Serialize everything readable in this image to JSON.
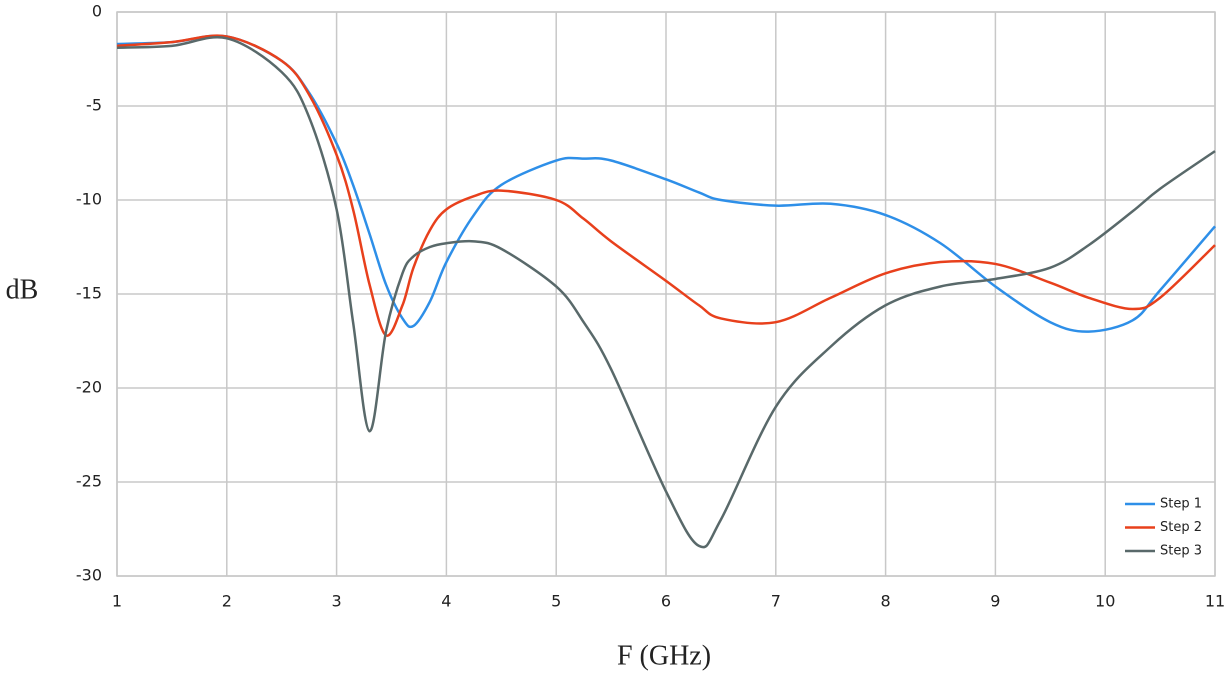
{
  "chart_data": {
    "type": "line",
    "x_label": "F (GHz)",
    "y_label": "dB",
    "x": [
      1,
      1.5,
      2,
      2.5,
      2.75,
      3,
      3.15,
      3.3,
      3.45,
      3.6,
      3.7,
      3.85,
      4,
      4.25,
      4.5,
      5,
      5.25,
      5.5,
      6,
      6.3,
      6.5,
      7,
      7.5,
      8,
      8.5,
      9,
      9.5,
      9.85,
      10.25,
      10.5,
      11
    ],
    "series": [
      {
        "name": "Step 1",
        "color": "#2e8fe8",
        "values": [
          -1.7,
          -1.6,
          -1.3,
          -2.6,
          -4.3,
          -7.0,
          -9.2,
          -11.8,
          -14.5,
          -16.3,
          -16.7,
          -15.4,
          -13.3,
          -10.8,
          -9.2,
          -7.9,
          -7.8,
          -7.9,
          -8.9,
          -9.6,
          -10.0,
          -10.3,
          -10.2,
          -10.8,
          -12.3,
          -14.6,
          -16.5,
          -17.0,
          -16.4,
          -14.8,
          -11.4
        ]
      },
      {
        "name": "Step 2",
        "color": "#e8401c",
        "values": [
          -1.8,
          -1.6,
          -1.3,
          -2.6,
          -4.4,
          -7.6,
          -10.5,
          -14.5,
          -17.2,
          -15.6,
          -13.6,
          -11.6,
          -10.5,
          -9.8,
          -9.5,
          -10.0,
          -11.0,
          -12.2,
          -14.3,
          -15.6,
          -16.3,
          -16.5,
          -15.2,
          -13.9,
          -13.3,
          -13.4,
          -14.4,
          -15.2,
          -15.8,
          -15.2,
          -12.4
        ]
      },
      {
        "name": "Step 3",
        "color": "#59696a",
        "values": [
          -1.9,
          -1.8,
          -1.4,
          -3.2,
          -5.6,
          -10.5,
          -16.5,
          -22.3,
          -17.0,
          -13.9,
          -13.0,
          -12.5,
          -12.3,
          -12.2,
          -12.6,
          -14.6,
          -16.5,
          -19.0,
          -25.5,
          -28.4,
          -27.0,
          -21.0,
          -17.8,
          -15.6,
          -14.6,
          -14.2,
          -13.6,
          -12.4,
          -10.6,
          -9.4,
          -7.4
        ]
      }
    ],
    "xlim": [
      1,
      11
    ],
    "xticks": [
      1,
      2,
      3,
      4,
      5,
      6,
      7,
      8,
      9,
      10,
      11
    ],
    "ylim": [
      -30,
      0
    ],
    "yticks": [
      0,
      -5,
      -10,
      -15,
      -20,
      -25,
      -30
    ],
    "grid": true,
    "legend": "lower right"
  }
}
